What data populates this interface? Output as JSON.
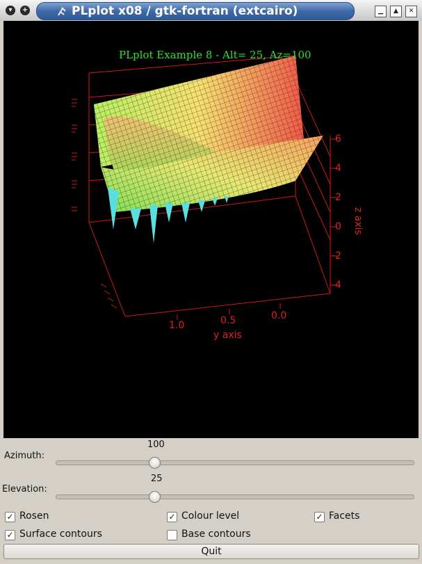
{
  "window": {
    "title": "PLplot x08 / gtk-fortran (extcairo)",
    "menu_glyph": "▾",
    "pin_glyph": "+",
    "min_glyph": "▁",
    "max_glyph": "▲",
    "close_glyph": "✕"
  },
  "plot": {
    "title": "PLplot Example 8 - Alt= 25, Az=100",
    "y_axis_label": "y axis",
    "z_axis_label": "z axis",
    "y_ticks": [
      "1.0",
      "0.5",
      "0.0"
    ],
    "z_ticks": [
      "6",
      "4",
      "2",
      "0",
      "-2",
      "-4"
    ],
    "colors": {
      "axes": "#e02020",
      "title": "#2fe02f",
      "background": "#000000"
    }
  },
  "controls": {
    "azimuth": {
      "label": "Azimuth:",
      "value": "100",
      "fraction": 0.278
    },
    "elevation": {
      "label": "Elevation:",
      "value": "25",
      "fraction": 0.278
    },
    "checkboxes": {
      "rosen": {
        "label": "Rosen",
        "checked": true,
        "mark": "✓"
      },
      "colour_level": {
        "label": "Colour level",
        "checked": true,
        "mark": "✓"
      },
      "facets": {
        "label": "Facets",
        "checked": true,
        "mark": "✓"
      },
      "surface_contours": {
        "label": "Surface contours",
        "checked": true,
        "mark": "✓"
      },
      "base_contours": {
        "label": "Base contours",
        "checked": false,
        "mark": ""
      }
    },
    "quit_label": "Quit"
  }
}
